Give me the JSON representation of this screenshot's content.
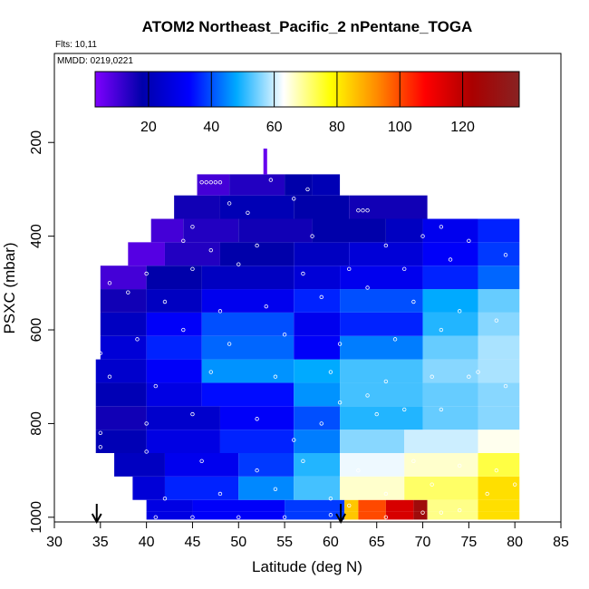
{
  "chart_data": {
    "type": "heatmap",
    "title": "ATOM2 Northeast_Pacific_2 nPentane_TOGA",
    "flights_note": "Flts: 10,11",
    "dates_note": "MMDD: 0219,0221",
    "xlabel": "Latitude (deg N)",
    "ylabel": "PSXC (mbar)",
    "xlim": [
      30,
      85
    ],
    "ylim": [
      1010,
      10
    ],
    "x_ticks": [
      30,
      35,
      40,
      45,
      50,
      55,
      60,
      65,
      70,
      75,
      80,
      85
    ],
    "y_ticks": [
      200,
      400,
      600,
      800,
      1000
    ],
    "colorbar": {
      "range": [
        3,
        138
      ],
      "ticks": [
        20,
        40,
        60,
        80,
        100,
        120
      ],
      "colors": [
        "#7f00ff",
        "#0000aa",
        "#0000ff",
        "#00aaff",
        "#ffffff",
        "#ffff00",
        "#ff8800",
        "#ff0000",
        "#aa0000",
        "#882222"
      ]
    },
    "arrows_lat": [
      34.6,
      61.1
    ],
    "bands": [
      {
        "p": [
          987,
          1005
        ],
        "segs": [
          [
            40.0,
            45.0,
            28
          ],
          [
            45.0,
            55.0,
            32
          ],
          [
            55.0,
            61.5,
            38
          ],
          [
            61.5,
            63.0,
            85
          ],
          [
            63.0,
            66.0,
            100
          ],
          [
            66.0,
            69.0,
            115
          ],
          [
            69.0,
            70.5,
            128
          ],
          [
            70.5,
            76.0,
            70
          ],
          [
            76.0,
            80.5,
            82
          ]
        ]
      },
      {
        "p": [
          963,
          987
        ],
        "segs": [
          [
            40.0,
            45.0,
            28
          ],
          [
            45.0,
            55.0,
            32
          ],
          [
            55.0,
            61.5,
            38
          ],
          [
            61.5,
            63.0,
            85
          ],
          [
            63.0,
            66.0,
            100
          ],
          [
            66.0,
            69.0,
            115
          ],
          [
            69.0,
            70.5,
            128
          ],
          [
            70.5,
            76.0,
            70
          ],
          [
            76.0,
            80.5,
            82
          ]
        ]
      },
      {
        "p": [
          913,
          963
        ],
        "segs": [
          [
            38.5,
            42.0,
            26
          ],
          [
            42.0,
            50.0,
            36
          ],
          [
            50.0,
            56.0,
            45
          ],
          [
            56.0,
            61.0,
            52
          ],
          [
            61.0,
            68.0,
            66
          ],
          [
            68.0,
            76.0,
            72
          ],
          [
            76.0,
            80.5,
            82
          ]
        ]
      },
      {
        "p": [
          863,
          913
        ],
        "segs": [
          [
            36.5,
            42.0,
            22
          ],
          [
            42.0,
            50.0,
            30
          ],
          [
            50.0,
            56.0,
            38
          ],
          [
            56.0,
            61.0,
            50
          ],
          [
            61.0,
            68.0,
            62
          ],
          [
            68.0,
            76.0,
            66
          ],
          [
            76.0,
            80.5,
            74
          ]
        ]
      },
      {
        "p": [
          813,
          863
        ],
        "segs": [
          [
            34.5,
            40.0,
            20
          ],
          [
            40.0,
            48.0,
            28
          ],
          [
            48.0,
            56.0,
            36
          ],
          [
            56.0,
            61.0,
            44
          ],
          [
            61.0,
            68.0,
            56
          ],
          [
            68.0,
            76.0,
            60
          ],
          [
            76.0,
            80.5,
            64
          ]
        ]
      },
      {
        "p": [
          763,
          813
        ],
        "segs": [
          [
            34.5,
            40.0,
            16
          ],
          [
            40.0,
            48.0,
            24
          ],
          [
            48.0,
            56.0,
            32
          ],
          [
            56.0,
            61.0,
            40
          ],
          [
            61.0,
            70.0,
            50
          ],
          [
            70.0,
            76.0,
            54
          ],
          [
            76.0,
            80.5,
            56
          ]
        ]
      },
      {
        "p": [
          713,
          763
        ],
        "segs": [
          [
            34.5,
            40.0,
            20
          ],
          [
            40.0,
            46.0,
            28
          ],
          [
            46.0,
            56.0,
            34
          ],
          [
            56.0,
            61.0,
            46
          ],
          [
            61.0,
            70.0,
            52
          ],
          [
            70.0,
            76.0,
            54
          ],
          [
            76.0,
            80.5,
            56
          ]
        ]
      },
      {
        "p": [
          663,
          713
        ],
        "segs": [
          [
            34.5,
            40.0,
            24
          ],
          [
            40.0,
            46.0,
            32
          ],
          [
            46.0,
            56.0,
            46
          ],
          [
            56.0,
            61.0,
            48
          ],
          [
            61.0,
            70.0,
            52
          ],
          [
            70.0,
            76.0,
            56
          ],
          [
            76.0,
            80.5,
            58
          ]
        ]
      },
      {
        "p": [
          613,
          663
        ],
        "segs": [
          [
            35.0,
            40.0,
            26
          ],
          [
            40.0,
            46.0,
            36
          ],
          [
            46.0,
            56.0,
            42
          ],
          [
            56.0,
            61.0,
            32
          ],
          [
            61.0,
            70.0,
            44
          ],
          [
            70.0,
            76.0,
            54
          ],
          [
            76.0,
            80.5,
            58
          ]
        ]
      },
      {
        "p": [
          563,
          613
        ],
        "segs": [
          [
            35.0,
            40.0,
            22
          ],
          [
            40.0,
            46.0,
            32
          ],
          [
            46.0,
            56.0,
            40
          ],
          [
            56.0,
            61.0,
            30
          ],
          [
            61.0,
            70.0,
            36
          ],
          [
            70.0,
            76.0,
            50
          ],
          [
            76.0,
            80.5,
            56
          ]
        ]
      },
      {
        "p": [
          513,
          563
        ],
        "segs": [
          [
            35.0,
            40.0,
            16
          ],
          [
            40.0,
            46.0,
            22
          ],
          [
            46.0,
            56.0,
            30
          ],
          [
            56.0,
            61.0,
            36
          ],
          [
            61.0,
            70.0,
            40
          ],
          [
            70.0,
            76.0,
            48
          ],
          [
            76.0,
            80.5,
            54
          ]
        ]
      },
      {
        "p": [
          463,
          513
        ],
        "segs": [
          [
            35.0,
            40.0,
            10
          ],
          [
            40.0,
            46.0,
            18
          ],
          [
            46.0,
            56.0,
            22
          ],
          [
            56.0,
            61.0,
            26
          ],
          [
            61.0,
            70.0,
            30
          ],
          [
            70.0,
            76.0,
            36
          ],
          [
            76.0,
            80.5,
            42
          ]
        ]
      },
      {
        "p": [
          413,
          463
        ],
        "segs": [
          [
            38.0,
            42.0,
            8
          ],
          [
            42.0,
            48.0,
            14
          ],
          [
            48.0,
            56.0,
            18
          ],
          [
            56.0,
            62.0,
            22
          ],
          [
            62.0,
            70.0,
            26
          ],
          [
            70.0,
            76.0,
            32
          ],
          [
            76.0,
            80.5,
            38
          ]
        ]
      },
      {
        "p": [
          363,
          413
        ],
        "segs": [
          [
            40.5,
            44.0,
            10
          ],
          [
            44.0,
            50.0,
            14
          ],
          [
            50.0,
            58.0,
            16
          ],
          [
            58.0,
            66.0,
            18
          ],
          [
            66.0,
            70.0,
            22
          ],
          [
            70.0,
            76.0,
            30
          ],
          [
            76.0,
            80.5,
            36
          ]
        ]
      },
      {
        "p": [
          313,
          363
        ],
        "segs": [
          [
            43.0,
            48.0,
            16
          ],
          [
            48.0,
            56.0,
            20
          ],
          [
            56.0,
            62.0,
            18
          ],
          [
            62.0,
            70.5,
            16
          ]
        ]
      },
      {
        "p": [
          268,
          313
        ],
        "segs": [
          [
            45.5,
            49.0,
            10
          ],
          [
            49.0,
            55.0,
            14
          ],
          [
            55.0,
            58.0,
            18
          ],
          [
            58.0,
            61.0,
            20
          ]
        ]
      },
      {
        "p": [
          213,
          268
        ],
        "segs": [
          [
            52.7,
            53.1,
            6
          ]
        ]
      }
    ],
    "samples": [
      [
        46,
        285
      ],
      [
        46.5,
        285
      ],
      [
        47,
        285
      ],
      [
        47.5,
        285
      ],
      [
        48,
        285
      ],
      [
        53.5,
        280
      ],
      [
        56,
        320
      ],
      [
        57.5,
        300
      ],
      [
        63,
        345
      ],
      [
        63.5,
        345
      ],
      [
        64,
        345
      ],
      [
        49,
        330
      ],
      [
        51,
        350
      ],
      [
        45,
        380
      ],
      [
        44,
        410
      ],
      [
        47,
        430
      ],
      [
        52,
        420
      ],
      [
        58,
        400
      ],
      [
        66,
        420
      ],
      [
        70,
        400
      ],
      [
        72,
        380
      ],
      [
        75,
        410
      ],
      [
        79,
        440
      ],
      [
        73,
        450
      ],
      [
        68,
        470
      ],
      [
        62,
        470
      ],
      [
        57,
        480
      ],
      [
        50,
        460
      ],
      [
        45,
        470
      ],
      [
        40,
        480
      ],
      [
        36,
        500
      ],
      [
        38,
        520
      ],
      [
        42,
        540
      ],
      [
        48,
        560
      ],
      [
        53,
        550
      ],
      [
        59,
        530
      ],
      [
        64,
        510
      ],
      [
        69,
        540
      ],
      [
        74,
        560
      ],
      [
        78,
        580
      ],
      [
        72,
        600
      ],
      [
        67,
        620
      ],
      [
        61,
        630
      ],
      [
        55,
        610
      ],
      [
        49,
        630
      ],
      [
        44,
        600
      ],
      [
        39,
        620
      ],
      [
        35,
        650
      ],
      [
        36,
        700
      ],
      [
        41,
        720
      ],
      [
        47,
        690
      ],
      [
        54,
        700
      ],
      [
        60,
        690
      ],
      [
        66,
        710
      ],
      [
        71,
        700
      ],
      [
        76,
        690
      ],
      [
        79,
        720
      ],
      [
        72,
        770
      ],
      [
        65,
        780
      ],
      [
        59,
        800
      ],
      [
        52,
        790
      ],
      [
        45,
        780
      ],
      [
        40,
        800
      ],
      [
        35,
        820
      ],
      [
        35,
        850
      ],
      [
        40,
        860
      ],
      [
        46,
        880
      ],
      [
        52,
        900
      ],
      [
        57,
        880
      ],
      [
        63,
        900
      ],
      [
        69,
        880
      ],
      [
        74,
        890
      ],
      [
        78,
        900
      ],
      [
        71,
        930
      ],
      [
        66,
        950
      ],
      [
        60,
        960
      ],
      [
        54,
        940
      ],
      [
        48,
        950
      ],
      [
        42,
        960
      ],
      [
        41,
        1000
      ],
      [
        45,
        1000
      ],
      [
        50,
        1000
      ],
      [
        55,
        1000
      ],
      [
        60,
        995
      ],
      [
        62,
        975
      ],
      [
        66,
        1000
      ],
      [
        70,
        990
      ],
      [
        74,
        985
      ],
      [
        77,
        950
      ],
      [
        80,
        930
      ],
      [
        72,
        990
      ],
      [
        56,
        835
      ],
      [
        61,
        755
      ],
      [
        68,
        770
      ],
      [
        75,
        700
      ],
      [
        64,
        740
      ]
    ]
  }
}
